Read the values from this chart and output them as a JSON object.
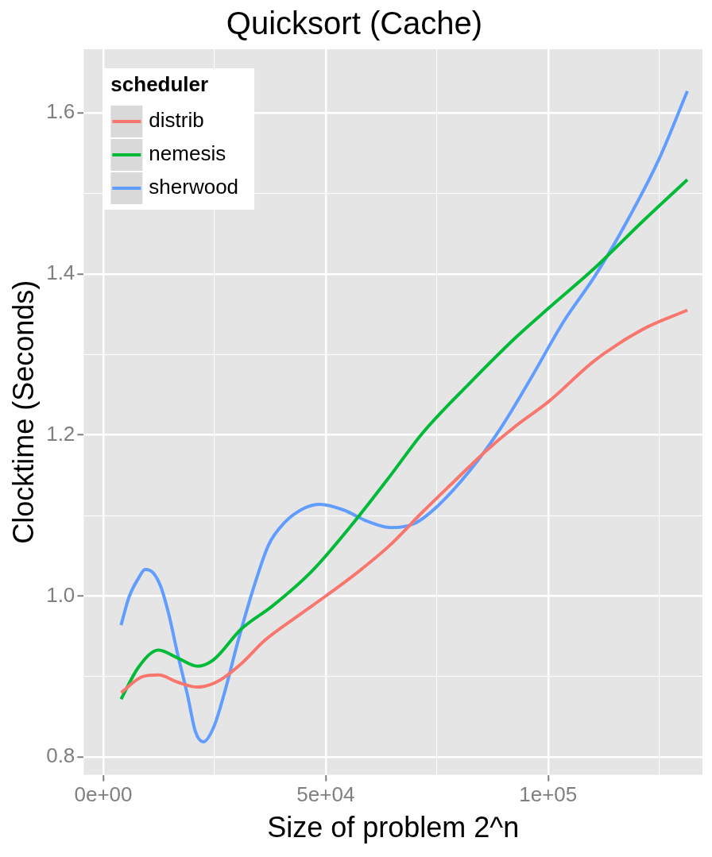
{
  "chart_data": {
    "type": "line",
    "title": "Quicksort (Cache)",
    "xlabel": "Size of problem 2^n",
    "ylabel": "Clocktime (Seconds)",
    "legend_title": "scheduler",
    "legend": "top left",
    "grid": true,
    "marker": "none",
    "xlim": [
      -4400,
      134700
    ],
    "ylim": [
      0.778,
      1.679
    ],
    "xticks": [
      {
        "value": 0,
        "label": "0e+00"
      },
      {
        "value": 25000,
        "label": null
      },
      {
        "value": 50000,
        "label": "5e+04"
      },
      {
        "value": 75000,
        "label": null
      },
      {
        "value": 100000,
        "label": "1e+05"
      },
      {
        "value": 125000,
        "label": null
      }
    ],
    "yticks": [
      0.8,
      {
        "value": 0.9,
        "label": null
      },
      {
        "value": 1,
        "label": "1.0"
      },
      {
        "value": 1.1,
        "label": null
      },
      1.2,
      {
        "value": 1.3,
        "label": null
      },
      1.4,
      {
        "value": 1.5,
        "label": null
      },
      1.6
    ],
    "series": [
      {
        "name": "distrib",
        "color": "#f8766d",
        "x": [
          4000,
          8850,
          12400,
          16800,
          21200,
          25700,
          31000,
          36300,
          43400,
          50000,
          57500,
          64600,
          71700,
          78800,
          85800,
          92900,
          100000,
          110600,
          121200,
          131300
        ],
        "values": [
          0.88,
          0.9,
          0.902,
          0.893,
          0.887,
          0.894,
          0.916,
          0.945,
          0.974,
          1.0,
          1.031,
          1.064,
          1.104,
          1.142,
          1.179,
          1.212,
          1.241,
          1.293,
          1.331,
          1.355
        ]
      },
      {
        "name": "nemesis",
        "color": "#00ba38",
        "x": [
          4000,
          7950,
          12400,
          16800,
          21200,
          24800,
          31000,
          38100,
          46900,
          55800,
          64600,
          71700,
          82300,
          92900,
          100000,
          110600,
          121200,
          131300
        ],
        "values": [
          0.872,
          0.912,
          0.933,
          0.923,
          0.913,
          0.921,
          0.959,
          0.988,
          1.031,
          1.088,
          1.15,
          1.202,
          1.264,
          1.322,
          1.357,
          1.408,
          1.465,
          1.517
        ]
      },
      {
        "name": "sherwood",
        "color": "#619cff",
        "x": [
          4000,
          5800,
          8000,
          9400,
          11200,
          12900,
          14700,
          16800,
          18900,
          20700,
          22500,
          24800,
          27400,
          30100,
          33600,
          37200,
          40700,
          45100,
          48700,
          54000,
          59300,
          64600,
          69900,
          75200,
          82300,
          89400,
          96500,
          103500,
          110600,
          117700,
          124800,
          131300
        ],
        "values": [
          0.964,
          0.999,
          1.023,
          1.033,
          1.029,
          1.012,
          0.978,
          0.926,
          0.878,
          0.832,
          0.819,
          0.837,
          0.883,
          0.94,
          1.007,
          1.064,
          1.091,
          1.109,
          1.114,
          1.107,
          1.093,
          1.085,
          1.09,
          1.112,
          1.155,
          1.209,
          1.274,
          1.341,
          1.398,
          1.465,
          1.541,
          1.627
        ]
      }
    ]
  }
}
